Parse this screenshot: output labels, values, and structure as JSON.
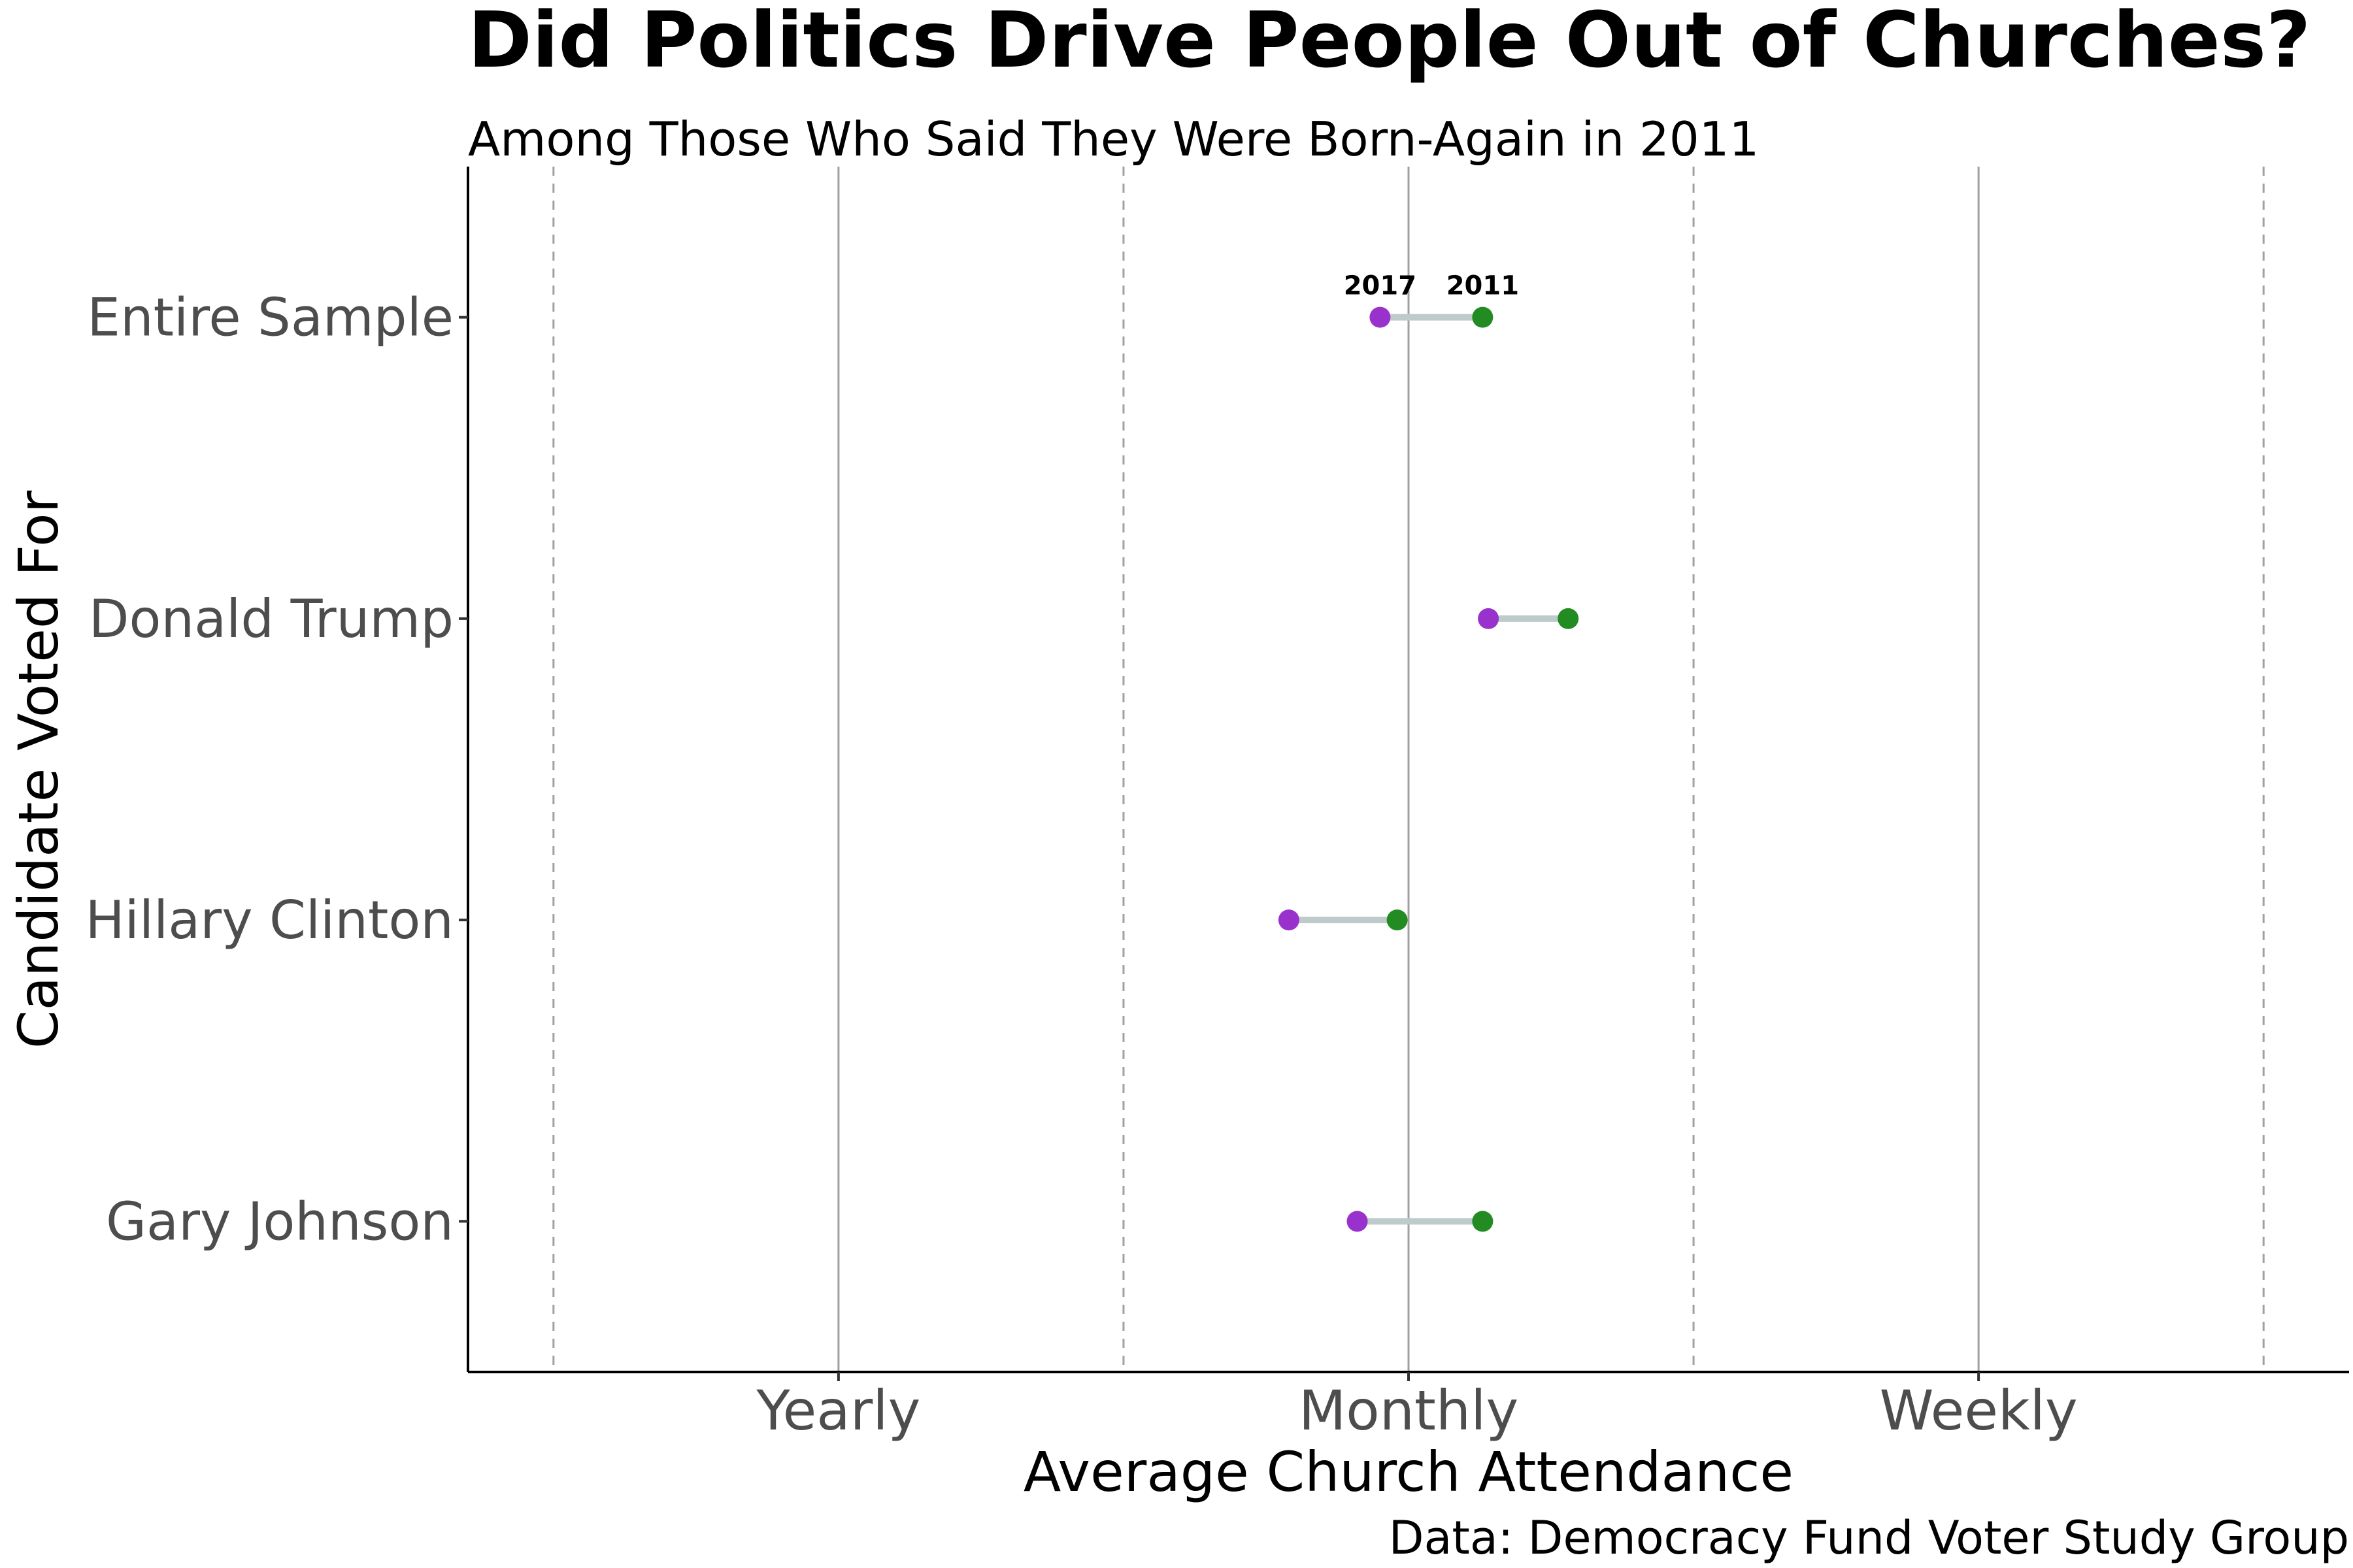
{
  "colors": {
    "start": "#228B22",
    "end": "#9932CC",
    "connector": "#BFCACA",
    "grid_major": "#A0A0A0",
    "grid_minor": "#A0A0A0",
    "axis_text": "#4D4D4D",
    "title_text": "#000000"
  },
  "chart_data": {
    "type": "dumbbell",
    "title": "Did Politics Drive People Out of Churches?",
    "subtitle": "Among Those Who Said They Were Born-Again in 2011",
    "caption": "Data: Democracy Fund Voter Study Group",
    "xlabel": "Average Church Attendance",
    "ylabel": "Candidate Voted For",
    "xlim": [
      0.7,
      4.0
    ],
    "x_ticks": [
      {
        "value": 1.35,
        "label": "Yearly"
      },
      {
        "value": 2.35,
        "label": "Monthly"
      },
      {
        "value": 3.35,
        "label": "Weekly"
      }
    ],
    "x_minor_gridlines": [
      0.85,
      1.85,
      2.85,
      3.85
    ],
    "grid": "vertical",
    "categories": [
      "Entire Sample",
      "Donald Trump",
      "Hillary Clinton",
      "Gary Johnson"
    ],
    "series": [
      {
        "name": "2011",
        "values": [
          2.48,
          2.63,
          2.33,
          2.48
        ]
      },
      {
        "name": "2017",
        "values": [
          2.3,
          2.49,
          2.14,
          2.26
        ]
      }
    ],
    "point_labels": {
      "category": "Entire Sample",
      "start": "2011",
      "end": "2017"
    }
  }
}
